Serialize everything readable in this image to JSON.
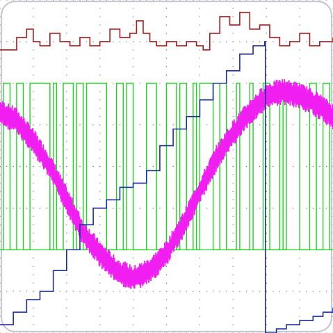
{
  "colors": {
    "background": "#ffffff",
    "frame": "#c8c8d2",
    "grid": "#8a8a8a"
  },
  "chart_data": {
    "type": "line",
    "title": "",
    "xlabel": "",
    "ylabel": "",
    "grid": true,
    "grid_style": "dotted",
    "grid_divisions": {
      "x": 10,
      "y": 8
    },
    "xlim": [
      0,
      10
    ],
    "ylim": [
      0,
      8
    ],
    "legend": "none",
    "series": [
      {
        "color": "#b01818",
        "style": "step",
        "x": [
          0,
          0.5,
          0.8,
          1.0,
          1.2,
          1.5,
          1.8,
          2.1,
          2.4,
          2.7,
          3.0,
          3.3,
          3.6,
          3.9,
          4.1,
          4.3,
          4.5,
          4.7,
          5.0,
          5.3,
          5.6,
          5.9,
          6.1,
          6.3,
          6.6,
          6.9,
          7.2,
          7.5,
          7.8,
          8.1,
          8.4,
          8.7,
          9.0,
          9.3,
          9.6,
          10.0
        ],
        "values": [
          6.8,
          7.1,
          7.3,
          7.0,
          6.9,
          7.2,
          7.0,
          6.9,
          7.1,
          6.9,
          7.0,
          7.3,
          7.1,
          7.2,
          7.5,
          7.2,
          7.0,
          6.9,
          7.0,
          6.9,
          7.0,
          6.9,
          6.8,
          7.2,
          7.6,
          7.4,
          7.7,
          7.3,
          7.4,
          7.1,
          6.9,
          7.0,
          7.2,
          6.9,
          7.0,
          7.1
        ]
      },
      {
        "color": "#1fd21f",
        "style": "digital",
        "x": [
          0.0,
          0.1,
          0.3,
          0.5,
          0.7,
          0.9,
          1.4,
          1.5,
          1.6,
          1.7,
          1.9,
          2.2,
          2.3,
          2.5,
          2.6,
          3.0,
          3.2,
          3.5,
          3.7,
          3.8,
          4.0,
          4.4,
          4.7,
          5.0,
          5.3,
          5.4,
          5.6,
          5.8,
          5.9,
          6.0,
          6.4,
          6.6,
          6.8,
          7.1,
          7.2,
          7.5,
          7.6,
          7.9,
          8.1,
          8.4,
          8.5,
          8.6,
          9.0,
          9.3,
          9.5,
          9.7,
          9.9
        ],
        "values": [
          2,
          6,
          2,
          6,
          2,
          6,
          6,
          2,
          6,
          2,
          6,
          2,
          6,
          2,
          6,
          6,
          2,
          6,
          2,
          6,
          2,
          6,
          2,
          6,
          2,
          6,
          2,
          6,
          2,
          6,
          2,
          6,
          2,
          6,
          2,
          6,
          2,
          6,
          2,
          6,
          2,
          6,
          2,
          6,
          2,
          6,
          2
        ]
      },
      {
        "color": "#f01ef0",
        "style": "noisy",
        "x": [
          0.0,
          0.5,
          1.0,
          1.5,
          2.0,
          2.5,
          3.0,
          3.5,
          4.0,
          4.5,
          5.0,
          5.5,
          6.0,
          6.5,
          7.0,
          7.5,
          8.0,
          8.5,
          9.0,
          9.5,
          10.0
        ],
        "values": [
          5.3,
          5.1,
          4.6,
          4.0,
          3.2,
          2.4,
          1.9,
          1.5,
          1.3,
          1.5,
          1.9,
          2.6,
          3.4,
          4.2,
          4.8,
          5.3,
          5.7,
          5.8,
          5.7,
          5.5,
          5.2
        ],
        "band": 0.32
      },
      {
        "color": "#1a2ea0",
        "style": "step",
        "x": [
          0.0,
          0.4,
          0.8,
          1.2,
          1.6,
          2.0,
          2.4,
          2.8,
          3.2,
          3.6,
          4.0,
          4.4,
          4.8,
          5.2,
          5.6,
          6.0,
          6.4,
          6.8,
          7.2,
          7.6,
          7.95,
          7.97,
          8.3,
          8.6,
          9.0,
          9.4,
          9.7,
          10.0
        ],
        "values": [
          0.2,
          0.5,
          0.8,
          1.0,
          1.5,
          2.0,
          2.6,
          3.0,
          3.2,
          3.5,
          3.6,
          3.9,
          4.5,
          4.9,
          5.2,
          5.6,
          6.0,
          6.3,
          6.7,
          6.9,
          7.0,
          0.0,
          0.1,
          0.2,
          0.3,
          0.4,
          0.5,
          0.6
        ]
      }
    ]
  }
}
